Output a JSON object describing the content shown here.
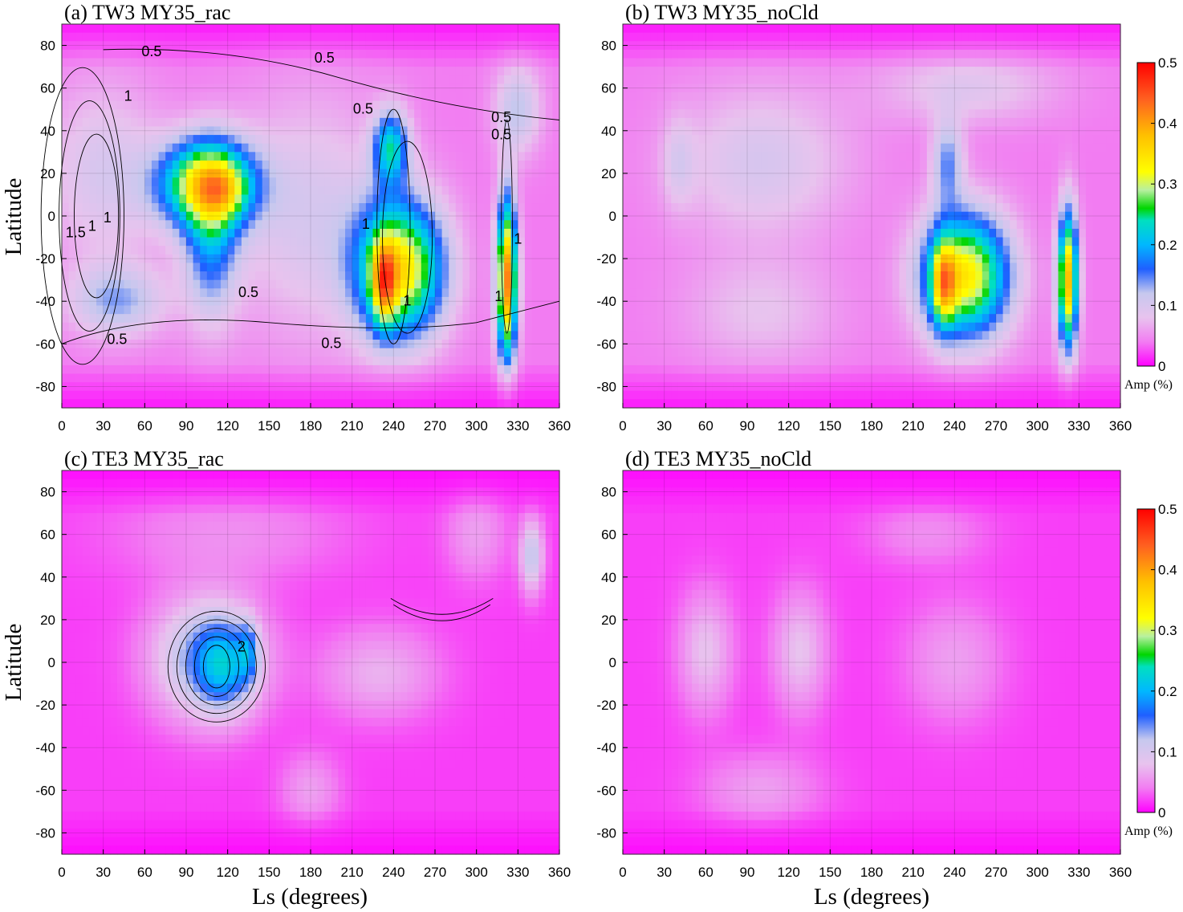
{
  "chart_data": [
    {
      "type": "heatmap",
      "title": "(a)   TW3   MY35_rac",
      "xlabel": "",
      "ylabel": "Latitude",
      "xlim": [
        0,
        360
      ],
      "ylim": [
        -90,
        90
      ],
      "grid": true,
      "xticks": [
        0,
        30,
        60,
        90,
        120,
        150,
        180,
        210,
        240,
        270,
        300,
        330,
        360
      ],
      "yticks": [
        -80,
        -60,
        -40,
        -20,
        0,
        20,
        40,
        60,
        80
      ],
      "background": 0.04,
      "blobs": [
        {
          "ls": 105,
          "lat": 15,
          "sls": 24,
          "slat": 14,
          "amp": 0.28
        },
        {
          "ls": 120,
          "lat": 12,
          "sls": 10,
          "slat": 9,
          "amp": 0.05
        },
        {
          "ls": 108,
          "lat": -10,
          "sls": 14,
          "slat": 26,
          "amp": 0.13
        },
        {
          "ls": 245,
          "lat": -25,
          "sls": 22,
          "slat": 22,
          "amp": 0.3
        },
        {
          "ls": 233,
          "lat": -32,
          "sls": 6,
          "slat": 14,
          "amp": 0.18
        },
        {
          "ls": 238,
          "lat": 32,
          "sls": 9,
          "slat": 12,
          "amp": 0.18
        },
        {
          "ls": 322,
          "lat": -30,
          "sls": 5,
          "slat": 26,
          "amp": 0.38
        },
        {
          "ls": 40,
          "lat": -40,
          "sls": 25,
          "slat": 12,
          "amp": 0.09
        },
        {
          "ls": 30,
          "lat": 20,
          "sls": 30,
          "slat": 30,
          "amp": 0.06
        },
        {
          "ls": 180,
          "lat": 0,
          "sls": 40,
          "slat": 40,
          "amp": 0.06
        },
        {
          "ls": 330,
          "lat": 50,
          "sls": 12,
          "slat": 15,
          "amp": 0.08
        }
      ],
      "contour_labels": [
        "0.5",
        "0.5",
        "0.5",
        "0.5",
        "0.5",
        "0.5",
        "0.5",
        "0.5",
        "1",
        "1",
        "1",
        "1",
        "1",
        "1",
        "1",
        "1.5"
      ]
    },
    {
      "type": "heatmap",
      "title": "(b)   TW3   MY35_noCld",
      "xlabel": "",
      "ylabel": "",
      "xlim": [
        0,
        360
      ],
      "ylim": [
        -90,
        90
      ],
      "grid": true,
      "xticks": [
        0,
        30,
        60,
        90,
        120,
        150,
        180,
        210,
        240,
        270,
        300,
        330,
        360
      ],
      "yticks": [
        -80,
        -60,
        -40,
        -20,
        0,
        20,
        40,
        60,
        80
      ],
      "background": 0.04,
      "blobs": [
        {
          "ls": 100,
          "lat": 25,
          "sls": 45,
          "slat": 25,
          "amp": 0.06
        },
        {
          "ls": 40,
          "lat": 25,
          "sls": 8,
          "slat": 15,
          "amp": 0.04
        },
        {
          "ls": 100,
          "lat": -45,
          "sls": 40,
          "slat": 18,
          "amp": 0.04
        },
        {
          "ls": 248,
          "lat": -28,
          "sls": 22,
          "slat": 20,
          "amp": 0.3
        },
        {
          "ls": 232,
          "lat": -32,
          "sls": 6,
          "slat": 14,
          "amp": 0.18
        },
        {
          "ls": 235,
          "lat": 25,
          "sls": 8,
          "slat": 14,
          "amp": 0.1
        },
        {
          "ls": 322,
          "lat": -30,
          "sls": 5,
          "slat": 22,
          "amp": 0.34
        },
        {
          "ls": 250,
          "lat": 60,
          "sls": 45,
          "slat": 12,
          "amp": 0.05
        }
      ]
    },
    {
      "type": "heatmap",
      "title": "(c)   TE3   MY35_rac",
      "xlabel": "Ls (degrees)",
      "ylabel": "Latitude",
      "xlim": [
        0,
        360
      ],
      "ylim": [
        -90,
        90
      ],
      "grid": true,
      "xticks": [
        0,
        30,
        60,
        90,
        120,
        150,
        180,
        210,
        240,
        270,
        300,
        330,
        360
      ],
      "yticks": [
        -80,
        -60,
        -40,
        -20,
        0,
        20,
        40,
        60,
        80
      ],
      "background": 0.02,
      "blobs": [
        {
          "ls": 105,
          "lat": 2,
          "sls": 28,
          "slat": 20,
          "amp": 0.12
        },
        {
          "ls": 118,
          "lat": -2,
          "sls": 14,
          "slat": 14,
          "amp": 0.1
        },
        {
          "ls": 135,
          "lat": 5,
          "sls": 5,
          "slat": 10,
          "amp": 0.08
        },
        {
          "ls": 230,
          "lat": -5,
          "sls": 30,
          "slat": 15,
          "amp": 0.05
        },
        {
          "ls": 340,
          "lat": 50,
          "sls": 6,
          "slat": 12,
          "amp": 0.1
        },
        {
          "ls": 300,
          "lat": 60,
          "sls": 15,
          "slat": 15,
          "amp": 0.04
        },
        {
          "ls": 120,
          "lat": 60,
          "sls": 60,
          "slat": 15,
          "amp": 0.03
        },
        {
          "ls": 180,
          "lat": -60,
          "sls": 15,
          "slat": 12,
          "amp": 0.04
        }
      ],
      "contour_labels": [
        "2"
      ]
    },
    {
      "type": "heatmap",
      "title": "(d)   TE3   MY35_noCld",
      "xlabel": "Ls (degrees)",
      "ylabel": "",
      "xlim": [
        0,
        360
      ],
      "ylim": [
        -90,
        90
      ],
      "grid": true,
      "xticks": [
        0,
        30,
        60,
        90,
        120,
        150,
        180,
        210,
        240,
        270,
        300,
        330,
        360
      ],
      "yticks": [
        -80,
        -60,
        -40,
        -20,
        0,
        20,
        40,
        60,
        80
      ],
      "background": 0.02,
      "blobs": [
        {
          "ls": 60,
          "lat": 5,
          "sls": 14,
          "slat": 20,
          "amp": 0.06
        },
        {
          "ls": 128,
          "lat": 5,
          "sls": 14,
          "slat": 20,
          "amp": 0.06
        },
        {
          "ls": 100,
          "lat": -60,
          "sls": 30,
          "slat": 12,
          "amp": 0.04
        },
        {
          "ls": 240,
          "lat": 0,
          "sls": 25,
          "slat": 20,
          "amp": 0.04
        },
        {
          "ls": 220,
          "lat": 60,
          "sls": 30,
          "slat": 10,
          "amp": 0.03
        }
      ]
    }
  ],
  "colorbar": {
    "ticks": [
      "0",
      "0.1",
      "0.2",
      "0.3",
      "0.4",
      "0.5"
    ],
    "unit": "Amp (%)",
    "range": [
      0,
      0.5
    ]
  }
}
